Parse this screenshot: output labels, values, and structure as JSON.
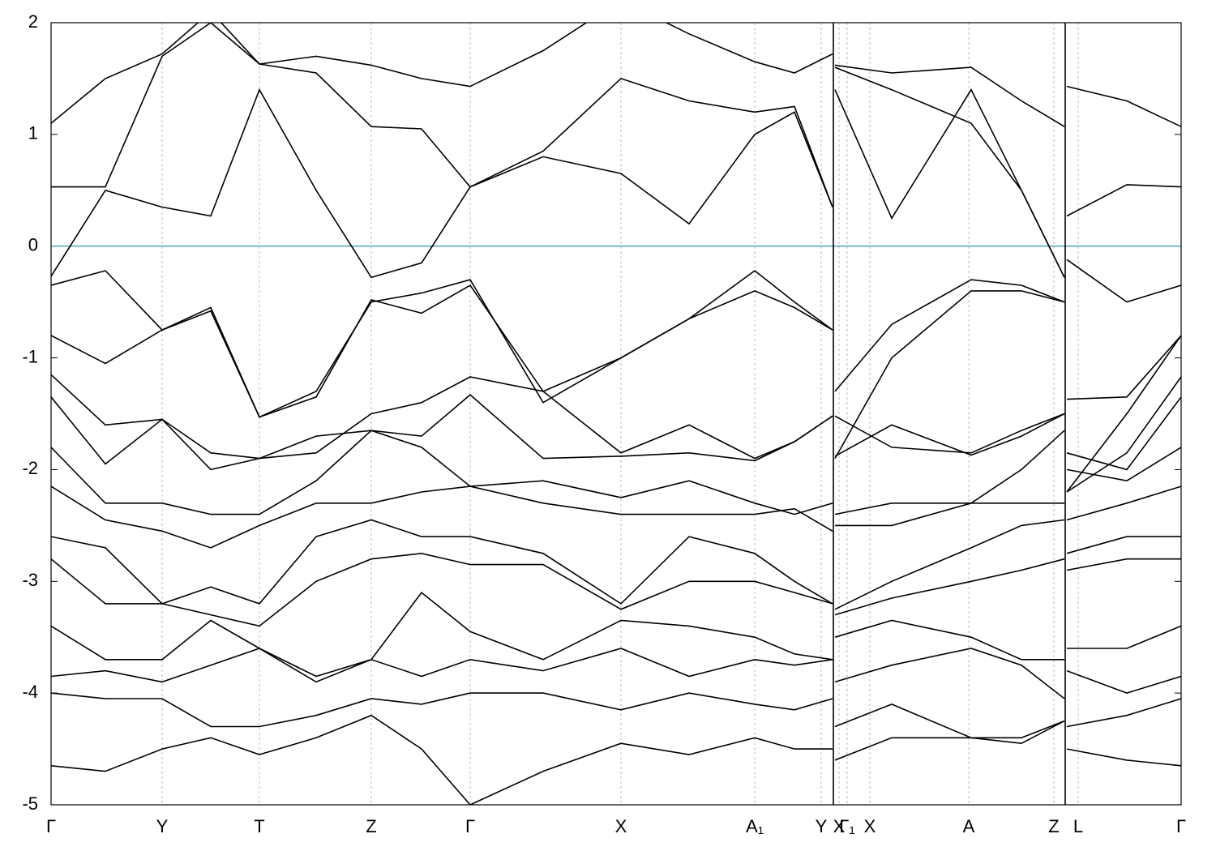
{
  "chart_data": {
    "type": "line",
    "x": [
      0,
      67,
      137,
      197,
      257,
      327,
      395,
      457,
      517,
      607,
      703,
      787,
      868,
      917,
      964,
      965.5,
      967,
      1037,
      1135,
      1197,
      1250,
      1251.5,
      1253,
      1327,
      1394
    ],
    "color": "#000000",
    "series": [
      {
        "values": [
          -0.27,
          0.5,
          0.35,
          0.27,
          1.4,
          0.5,
          -0.28,
          -0.15,
          0.53,
          0.85,
          1.5,
          1.3,
          1.2,
          1.25,
          0.35,
          null,
          1.4,
          0.25,
          1.4,
          0.5,
          -0.28,
          null,
          -0.12,
          -0.5,
          -0.35
        ]
      },
      {
        "values": [
          0.53,
          0.53,
          1.7,
          2.0,
          1.63,
          1.55,
          1.07,
          1.05,
          0.53,
          0.8,
          0.65,
          0.2,
          1.0,
          1.2,
          0.35,
          null,
          1.6,
          1.4,
          1.1,
          0.5,
          -0.28,
          null,
          0.27,
          0.55,
          0.53
        ]
      },
      {
        "values": [
          1.1,
          1.5,
          1.72,
          2.1,
          1.63,
          1.7,
          1.62,
          1.5,
          1.43,
          1.75,
          2.2,
          1.9,
          1.65,
          1.55,
          1.72,
          null,
          1.62,
          1.55,
          1.6,
          1.3,
          1.07,
          null,
          1.43,
          1.3,
          1.07
        ]
      },
      {
        "values": [
          -0.35,
          -0.22,
          -0.75,
          -0.55,
          -1.53,
          -1.3,
          -0.5,
          -0.42,
          -0.3,
          -1.4,
          -1.0,
          -0.65,
          -0.22,
          -0.5,
          -0.75,
          null,
          -1.3,
          -0.7,
          -0.3,
          -0.35,
          -0.5,
          null,
          -1.37,
          -1.35,
          -0.8
        ]
      },
      {
        "values": [
          -0.8,
          -1.05,
          -0.75,
          -0.58,
          -1.53,
          -1.35,
          -0.48,
          -0.6,
          -0.35,
          -1.3,
          -1.0,
          -0.65,
          -0.4,
          -0.55,
          -0.75,
          null,
          -1.9,
          -1.0,
          -0.4,
          -0.4,
          -0.5,
          null,
          -2.2,
          -1.5,
          -0.8
        ]
      },
      {
        "values": [
          -1.15,
          -1.6,
          -1.55,
          -1.85,
          -1.9,
          -1.85,
          -1.5,
          -1.4,
          -1.17,
          -1.3,
          -1.85,
          -1.6,
          -1.9,
          -1.75,
          -1.52,
          null,
          -1.52,
          -1.8,
          -1.85,
          -1.65,
          -1.5,
          null,
          -2.2,
          -1.85,
          -1.17
        ]
      },
      {
        "values": [
          -1.35,
          -1.95,
          -1.55,
          -2.0,
          -1.9,
          -1.7,
          -1.65,
          -1.7,
          -1.33,
          -1.9,
          -1.88,
          -1.85,
          -1.92,
          -1.75,
          -1.52,
          null,
          -1.88,
          -1.6,
          -1.87,
          -1.7,
          -1.5,
          null,
          -1.85,
          -2.0,
          -1.35
        ]
      },
      {
        "values": [
          -1.8,
          -2.3,
          -2.3,
          -2.4,
          -2.4,
          -2.1,
          -1.65,
          -1.8,
          -2.15,
          -2.1,
          -2.25,
          -2.1,
          -2.3,
          -2.4,
          -2.3,
          null,
          -2.4,
          -2.3,
          -2.3,
          -2.0,
          -1.65,
          null,
          -2.0,
          -2.1,
          -1.8
        ]
      },
      {
        "values": [
          -2.15,
          -2.45,
          -2.55,
          -2.7,
          -2.5,
          -2.3,
          -2.3,
          -2.2,
          -2.15,
          -2.3,
          -2.4,
          -2.4,
          -2.4,
          -2.35,
          -2.55,
          null,
          -2.5,
          -2.5,
          -2.3,
          -2.3,
          -2.3,
          null,
          -2.45,
          -2.3,
          -2.15
        ]
      },
      {
        "values": [
          -2.6,
          -2.7,
          -3.2,
          -3.05,
          -3.2,
          -2.6,
          -2.45,
          -2.6,
          -2.6,
          -2.75,
          -3.2,
          -2.6,
          -2.75,
          -3.0,
          -3.2,
          null,
          -3.25,
          -3.0,
          -2.7,
          -2.5,
          -2.45,
          null,
          -2.75,
          -2.6,
          -2.6
        ]
      },
      {
        "values": [
          -2.8,
          -3.2,
          -3.2,
          -3.3,
          -3.4,
          -3.0,
          -2.8,
          -2.75,
          -2.85,
          -2.85,
          -3.25,
          -3.0,
          -3.0,
          -3.1,
          -3.2,
          null,
          -3.3,
          -3.15,
          -3.0,
          -2.9,
          -2.8,
          null,
          -2.9,
          -2.8,
          -2.8
        ]
      },
      {
        "values": [
          -3.4,
          -3.7,
          -3.7,
          -3.35,
          -3.6,
          -3.85,
          -3.7,
          -3.1,
          -3.45,
          -3.7,
          -3.35,
          -3.4,
          -3.5,
          -3.65,
          -3.7,
          null,
          -3.5,
          -3.35,
          -3.5,
          -3.7,
          -3.7,
          null,
          -3.6,
          -3.6,
          -3.4
        ]
      },
      {
        "values": [
          -3.85,
          -3.8,
          -3.9,
          -3.75,
          -3.6,
          -3.9,
          -3.7,
          -3.85,
          -3.7,
          -3.8,
          -3.6,
          -3.85,
          -3.7,
          -3.75,
          -3.7,
          null,
          -3.9,
          -3.75,
          -3.6,
          -3.75,
          -4.05,
          null,
          -3.8,
          -4.0,
          -3.85
        ]
      },
      {
        "values": [
          -4.0,
          -4.05,
          -4.05,
          -4.3,
          -4.3,
          -4.2,
          -4.05,
          -4.1,
          -4.0,
          -4.0,
          -4.15,
          -4.0,
          -4.1,
          -4.15,
          -4.05,
          null,
          -4.3,
          -4.1,
          -4.4,
          -4.4,
          -4.25,
          null,
          -4.3,
          -4.2,
          -4.05
        ]
      },
      {
        "values": [
          -4.65,
          -4.7,
          -4.5,
          -4.4,
          -4.55,
          -4.4,
          -4.2,
          -4.5,
          -5.0,
          -4.7,
          -4.45,
          -4.55,
          -4.4,
          -4.5,
          -4.5,
          null,
          -4.6,
          -4.4,
          -4.4,
          -4.45,
          -4.25,
          null,
          -4.5,
          -4.6,
          -4.65
        ]
      }
    ],
    "xlim": [
      0,
      1394
    ],
    "xticks": [
      {
        "value": 0,
        "label": "Γ"
      },
      {
        "value": 137,
        "label": "Y"
      },
      {
        "value": 257,
        "label": "T"
      },
      {
        "value": 395,
        "label": "Z"
      },
      {
        "value": 517,
        "label": "Γ"
      },
      {
        "value": 703,
        "label": "X"
      },
      {
        "value": 868,
        "label": "A₁"
      },
      {
        "value": 950,
        "label": "Y"
      },
      {
        "value": 972,
        "label": "X"
      },
      {
        "value": 982,
        "label": "Γ₁"
      },
      {
        "value": 1010,
        "label": "X"
      },
      {
        "value": 1132,
        "label": "A"
      },
      {
        "value": 1237,
        "label": "Z"
      },
      {
        "value": 1267,
        "label": "L"
      },
      {
        "value": 1394,
        "label": "Γ"
      }
    ],
    "ylim": [
      -5,
      2
    ],
    "yticks": [
      -5,
      -4,
      -3,
      -2,
      -1,
      0,
      1,
      2
    ],
    "fermi_level": 0,
    "fermi_color": "#5aa9c2",
    "grid": true
  }
}
